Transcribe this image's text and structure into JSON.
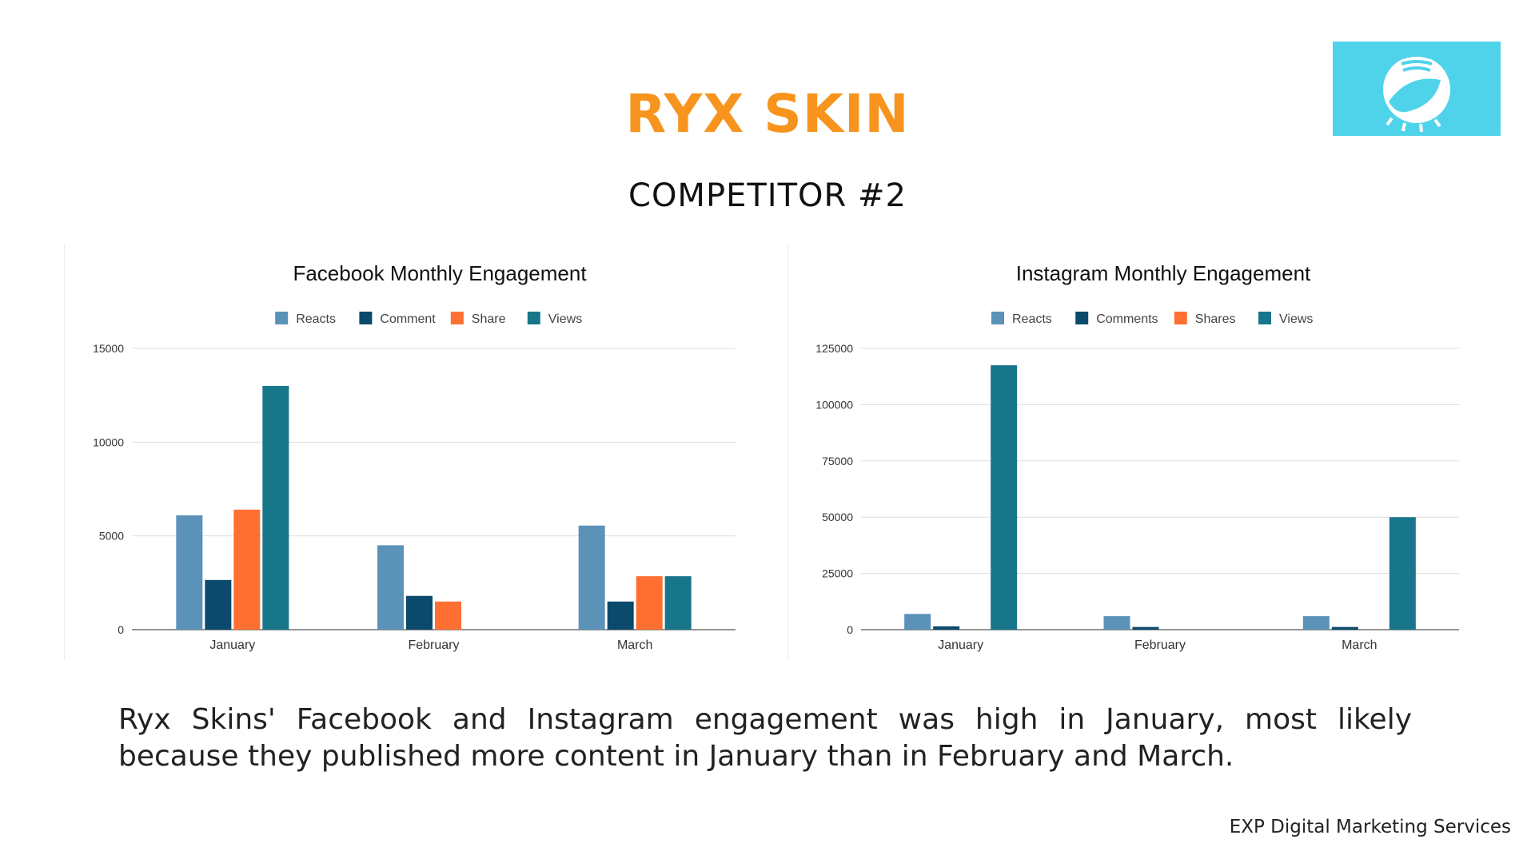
{
  "page": {
    "title": "RYX SKIN",
    "subtitle": "COMPETITOR #2",
    "caption": "Ryx Skins' Facebook and Instagram engagement was high in January, most likely because they published more content in January than in February and March.",
    "footer": "EXP Digital Marketing Services"
  },
  "colors": {
    "title": "#f7941d",
    "logo_bg": "#4fd3ea"
  },
  "chart_data": [
    {
      "type": "bar",
      "title": "Facebook Monthly Engagement",
      "categories": [
        "January",
        "February",
        "March"
      ],
      "series": [
        {
          "name": "Reacts",
          "color": "#5b92b8",
          "values": [
            6100,
            4500,
            5550
          ]
        },
        {
          "name": "Comment",
          "color": "#0b4a6a",
          "values": [
            2650,
            1800,
            1500
          ]
        },
        {
          "name": "Share",
          "color": "#ff6f32",
          "values": [
            6400,
            1500,
            2850
          ]
        },
        {
          "name": "Views",
          "color": "#18768a",
          "values": [
            13000,
            0,
            2850
          ]
        }
      ],
      "ylim": [
        0,
        15000
      ],
      "yticks": [
        0,
        5000,
        10000,
        15000
      ],
      "ytick_labels": [
        "0",
        "5000",
        "10000",
        "15000"
      ],
      "legend": "top-center",
      "grid": true
    },
    {
      "type": "bar",
      "title": "Instagram Monthly Engagement",
      "categories": [
        "January",
        "February",
        "March"
      ],
      "series": [
        {
          "name": "Reacts",
          "color": "#5b92b8",
          "values": [
            7000,
            6000,
            6000
          ]
        },
        {
          "name": "Comments",
          "color": "#0b4a6a",
          "values": [
            1500,
            1200,
            1200
          ]
        },
        {
          "name": "Shares",
          "color": "#ff6f32",
          "values": [
            0,
            0,
            0
          ]
        },
        {
          "name": "Views",
          "color": "#18768a",
          "values": [
            117500,
            0,
            50000
          ]
        }
      ],
      "ylim": [
        0,
        125000
      ],
      "yticks": [
        0,
        25000,
        50000,
        75000,
        100000,
        125000
      ],
      "ytick_labels": [
        "0",
        "25000",
        "50000",
        "75000",
        "100000",
        "125000"
      ],
      "legend": "top-center",
      "grid": true
    }
  ]
}
